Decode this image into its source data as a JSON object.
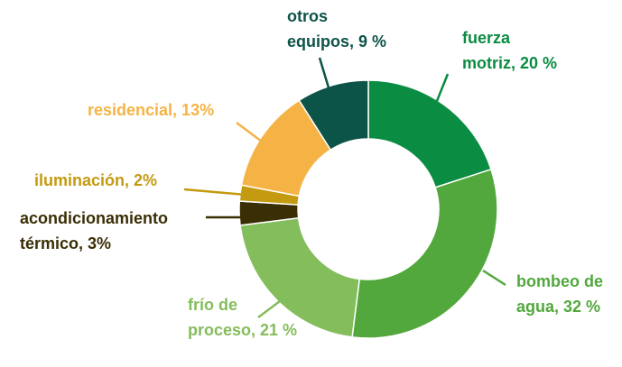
{
  "chart_data": {
    "type": "donut",
    "categories": [
      [
        "fuerza",
        "motriz, 20 %"
      ],
      [
        "bombeo de",
        "agua, 32 %"
      ],
      [
        "frío de",
        "proceso, 21 %"
      ],
      [
        "acondicionamiento",
        "térmico, 3%"
      ],
      [
        "iluminación, 2%"
      ],
      [
        "residencial, 13%"
      ],
      [
        "otros",
        "equipos, 9 %"
      ]
    ],
    "values": [
      20,
      32,
      21,
      3,
      2,
      13,
      9
    ],
    "colors": [
      "#0a8c42",
      "#52a83d",
      "#84bd5c",
      "#3a2e05",
      "#c49a10",
      "#f6b345",
      "#0d5448"
    ]
  }
}
